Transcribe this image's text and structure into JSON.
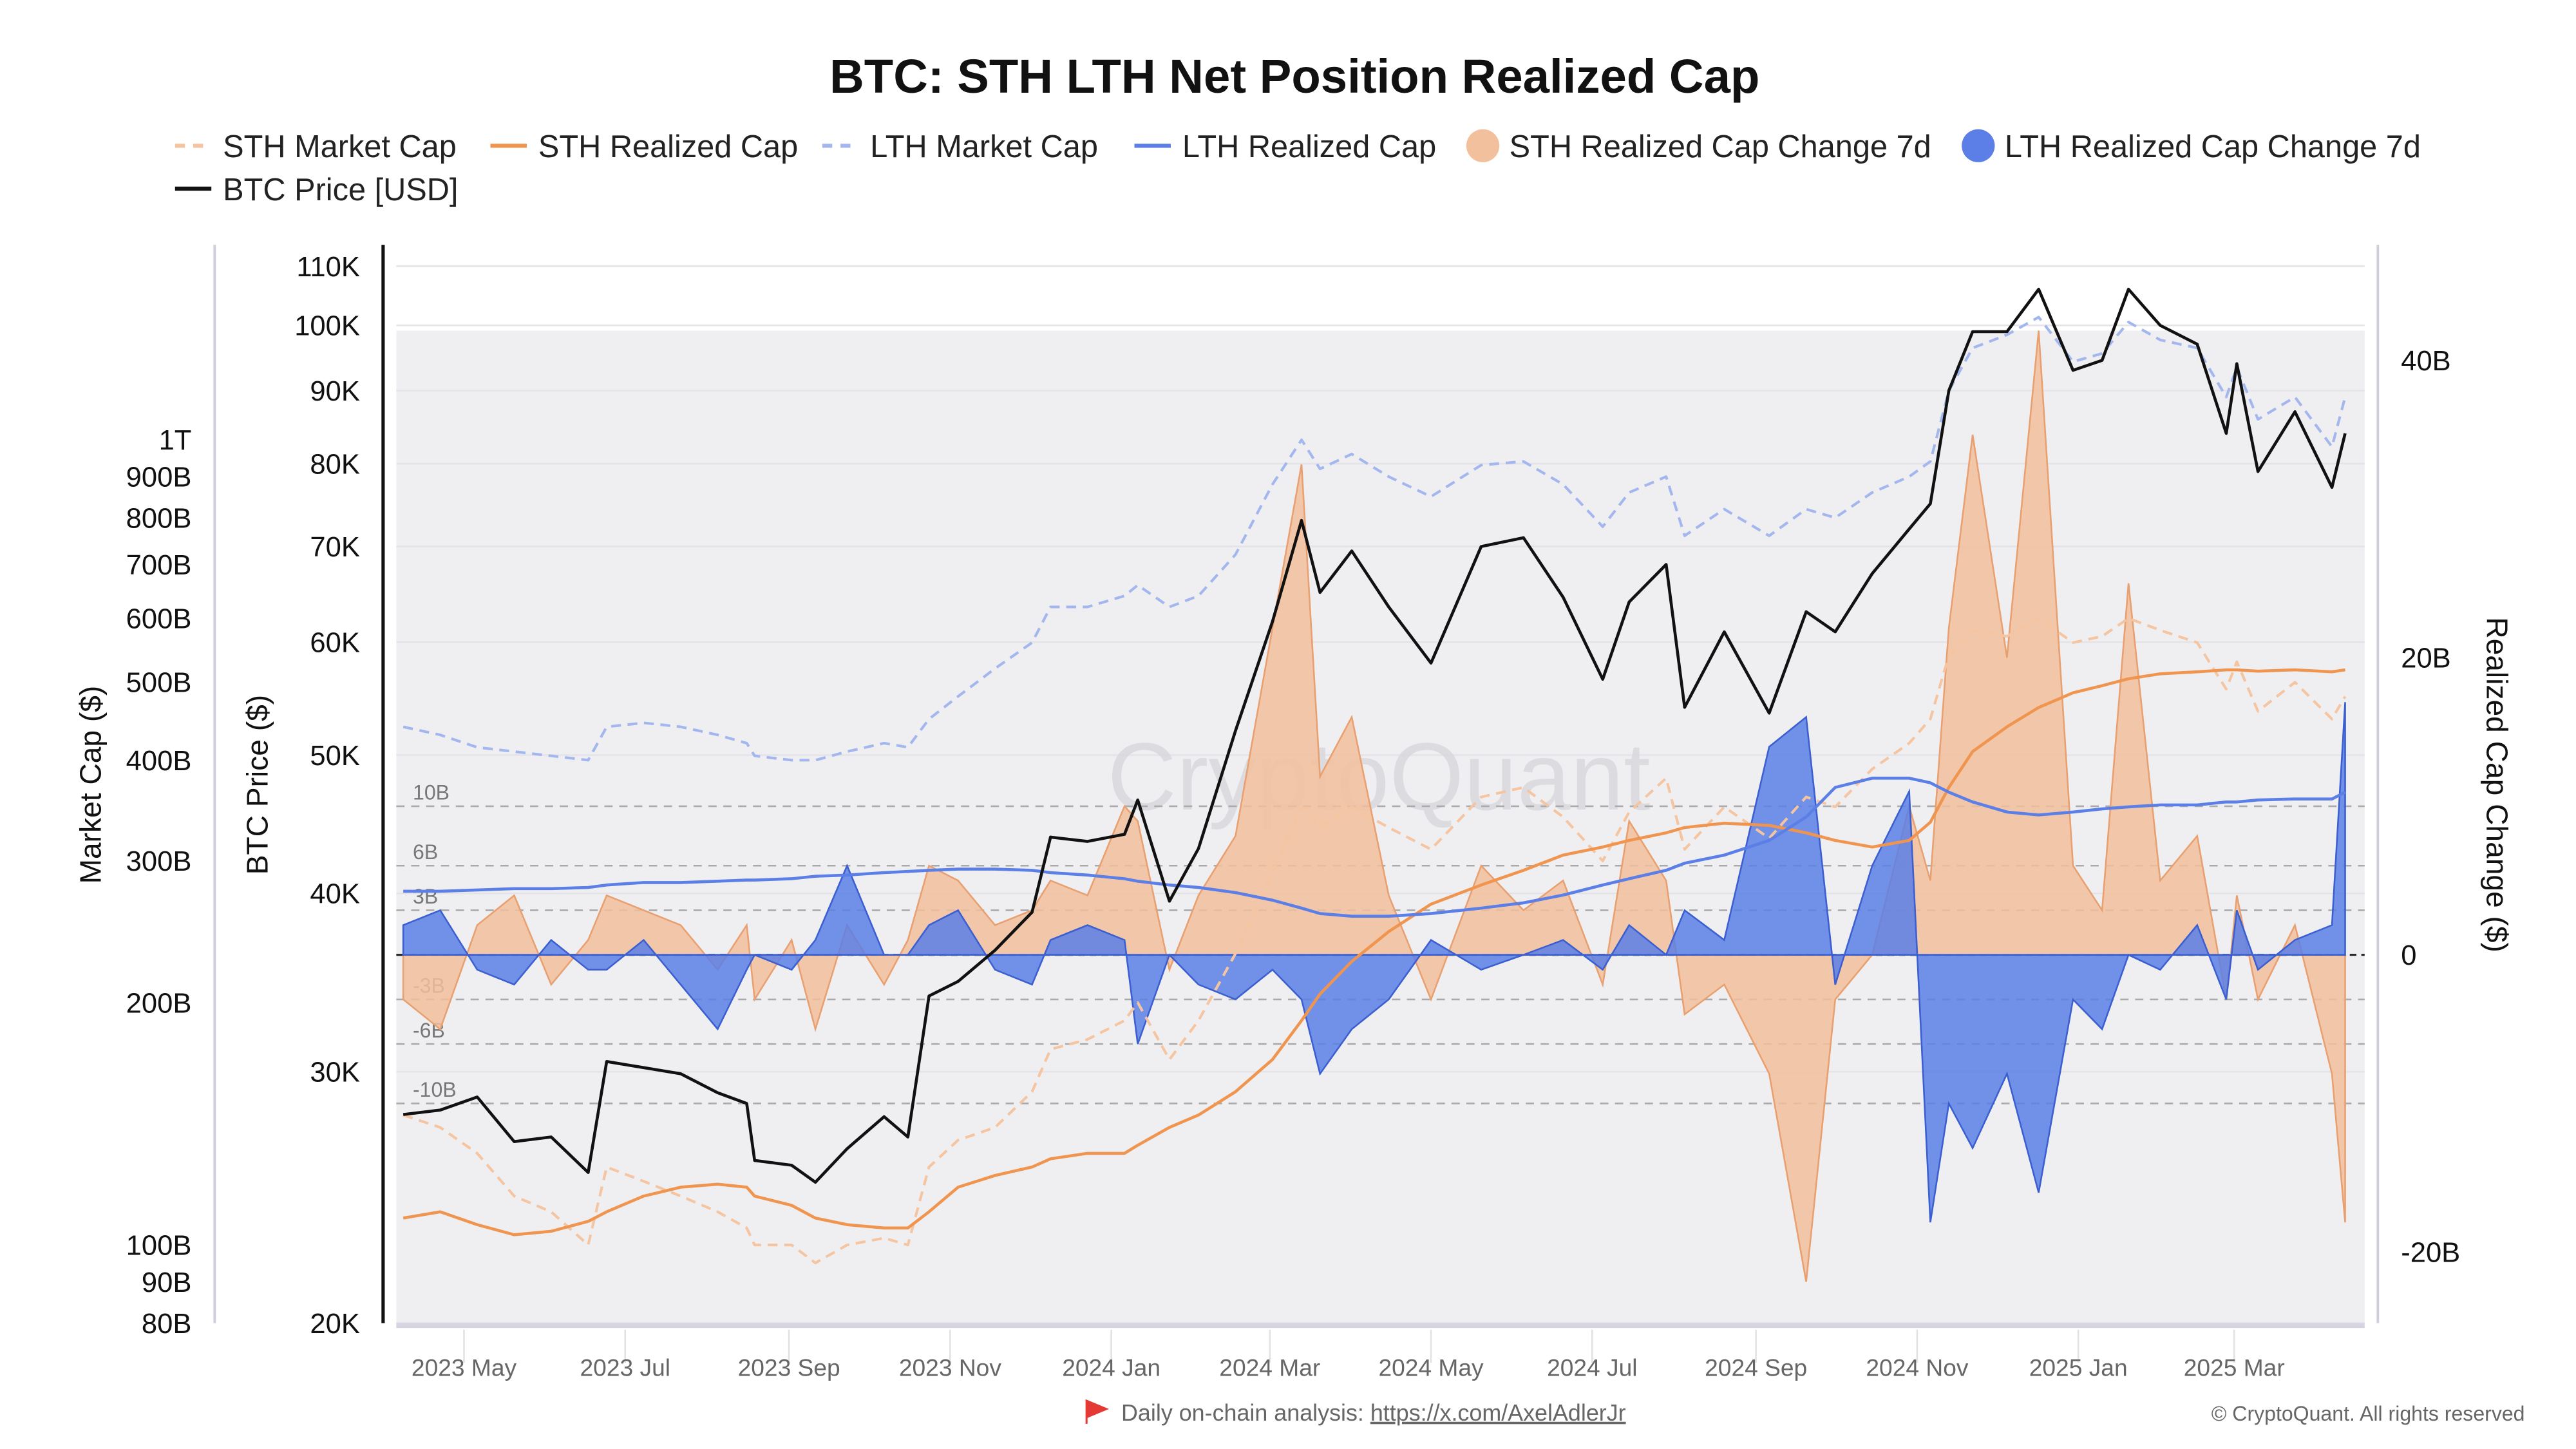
{
  "chart_data": {
    "type": "line",
    "title": "BTC: STH LTH Net Position Realized Cap",
    "legend": {
      "placement": "top-left",
      "items": [
        {
          "label": "STH Market Cap",
          "color": "#f5c4a0",
          "style": "dashed"
        },
        {
          "label": "STH Realized Cap",
          "color": "#f0954f",
          "style": "solid"
        },
        {
          "label": "LTH Market Cap",
          "color": "#a3b6ee",
          "style": "dashed"
        },
        {
          "label": "LTH Realized Cap",
          "color": "#5b7fe6",
          "style": "solid"
        },
        {
          "label": "STH Realized Cap Change 7d",
          "color": "#f2c09c",
          "style": "area"
        },
        {
          "label": "LTH Realized Cap Change 7d",
          "color": "#5b7fe6",
          "style": "area"
        },
        {
          "label": "BTC Price [USD]",
          "color": "#111111",
          "style": "solid"
        }
      ]
    },
    "axes": {
      "market_cap": {
        "label": "Market Cap ($)",
        "scale": "log",
        "range": [
          80,
          1000
        ],
        "unit": "B",
        "ticks": [
          "80B",
          "90B",
          "100B",
          "200B",
          "300B",
          "400B",
          "500B",
          "600B",
          "700B",
          "800B",
          "900B",
          "1T"
        ],
        "tick_values": [
          80,
          90,
          100,
          200,
          300,
          400,
          500,
          600,
          700,
          800,
          900,
          1000
        ]
      },
      "price": {
        "label": "BTC Price ($)",
        "scale": "log",
        "range": [
          20000,
          110000
        ],
        "ticks": [
          "20K",
          "30K",
          "40K",
          "50K",
          "60K",
          "70K",
          "80K",
          "90K",
          "100K",
          "110K"
        ],
        "tick_values": [
          20000,
          30000,
          40000,
          50000,
          60000,
          70000,
          80000,
          90000,
          100000,
          110000
        ]
      },
      "change": {
        "label": "Realized Cap Change ($)",
        "scale": "linear",
        "range": [
          -25,
          45
        ],
        "unit": "B",
        "ticks": [
          "-20B",
          "0",
          "20B",
          "40B"
        ],
        "tick_values": [
          -20,
          0,
          20,
          40
        ]
      },
      "x": {
        "type": "date",
        "ticks": [
          "2023 May",
          "2023 Jul",
          "2023 Sep",
          "2023 Nov",
          "2024 Jan",
          "2024 Mar",
          "2024 May",
          "2024 Jul",
          "2024 Sep",
          "2024 Nov",
          "2025 Jan",
          "2025 Mar"
        ],
        "tick_dates": [
          "2023-05-01",
          "2023-07-01",
          "2023-09-01",
          "2023-11-01",
          "2024-01-01",
          "2024-03-01",
          "2024-05-01",
          "2024-07-01",
          "2024-09-01",
          "2024-11-01",
          "2025-01-01",
          "2025-03-01"
        ]
      }
    },
    "reference_lines": [
      {
        "label": "10B",
        "value": 10
      },
      {
        "label": "6B",
        "value": 6
      },
      {
        "label": "3B",
        "value": 3
      },
      {
        "label": "-3B",
        "value": -3
      },
      {
        "label": "-6B",
        "value": -6
      },
      {
        "label": "-10B",
        "value": -10
      }
    ],
    "grid": true,
    "dates": [
      "2023-04-08",
      "2023-04-22",
      "2023-05-06",
      "2023-05-20",
      "2023-06-03",
      "2023-06-17",
      "2023-06-24",
      "2023-07-08",
      "2023-07-22",
      "2023-08-05",
      "2023-08-16",
      "2023-08-19",
      "2023-09-02",
      "2023-09-11",
      "2023-09-23",
      "2023-10-07",
      "2023-10-16",
      "2023-10-24",
      "2023-11-04",
      "2023-11-18",
      "2023-12-02",
      "2023-12-09",
      "2023-12-23",
      "2024-01-06",
      "2024-01-11",
      "2024-01-23",
      "2024-02-03",
      "2024-02-17",
      "2024-03-02",
      "2024-03-13",
      "2024-03-20",
      "2024-04-01",
      "2024-04-15",
      "2024-05-01",
      "2024-05-20",
      "2024-06-05",
      "2024-06-20",
      "2024-07-05",
      "2024-07-15",
      "2024-07-29",
      "2024-08-05",
      "2024-08-20",
      "2024-09-06",
      "2024-09-20",
      "2024-10-01",
      "2024-10-15",
      "2024-10-29",
      "2024-11-06",
      "2024-11-13",
      "2024-11-22",
      "2024-12-05",
      "2024-12-17",
      "2024-12-30",
      "2025-01-10",
      "2025-01-20",
      "2025-02-01",
      "2025-02-15",
      "2025-02-26",
      "2025-03-02",
      "2025-03-10",
      "2025-03-24",
      "2025-04-07",
      "2025-04-12"
    ],
    "series": [
      {
        "name": "BTC Price [USD]",
        "axis": "price",
        "values": [
          28000,
          28200,
          28800,
          26800,
          27000,
          25500,
          30500,
          30200,
          29900,
          29000,
          28500,
          26000,
          25800,
          25100,
          26500,
          27900,
          27000,
          33900,
          34700,
          36500,
          38800,
          43800,
          43500,
          44000,
          46500,
          39500,
          43000,
          52000,
          62000,
          73000,
          65000,
          69500,
          63500,
          58000,
          70000,
          71000,
          64500,
          56500,
          64000,
          68000,
          54000,
          61000,
          53500,
          63000,
          61000,
          67000,
          72000,
          75000,
          90000,
          99000,
          99000,
          106000,
          93000,
          94500,
          106000,
          100000,
          97000,
          84000,
          94000,
          79000,
          87000,
          77000,
          84000
        ]
      },
      {
        "name": "STH Market Cap",
        "axis": "market_cap",
        "values": [
          145,
          140,
          130,
          115,
          110,
          100,
          125,
          120,
          115,
          110,
          105,
          100,
          100,
          95,
          100,
          102,
          100,
          125,
          135,
          140,
          155,
          175,
          180,
          190,
          200,
          170,
          190,
          230,
          290,
          350,
          330,
          350,
          330,
          310,
          360,
          370,
          340,
          300,
          345,
          380,
          310,
          350,
          320,
          360,
          350,
          390,
          420,
          450,
          540,
          580,
          570,
          600,
          560,
          570,
          600,
          580,
          560,
          490,
          530,
          460,
          500,
          450,
          480
        ]
      },
      {
        "name": "STH Realized Cap",
        "axis": "market_cap",
        "values": [
          108,
          110,
          106,
          103,
          104,
          107,
          110,
          115,
          118,
          119,
          118,
          115,
          112,
          108,
          106,
          105,
          105,
          110,
          118,
          122,
          125,
          128,
          130,
          130,
          133,
          140,
          145,
          155,
          170,
          190,
          205,
          225,
          245,
          265,
          280,
          292,
          305,
          312,
          318,
          325,
          330,
          334,
          332,
          325,
          318,
          312,
          318,
          335,
          370,
          410,
          440,
          465,
          485,
          495,
          505,
          512,
          515,
          518,
          518,
          516,
          518,
          515,
          518
        ]
      },
      {
        "name": "LTH Market Cap",
        "axis": "market_cap",
        "values": [
          440,
          430,
          415,
          410,
          405,
          400,
          440,
          445,
          440,
          430,
          420,
          405,
          400,
          400,
          410,
          420,
          415,
          450,
          480,
          520,
          560,
          620,
          620,
          640,
          660,
          620,
          640,
          720,
          880,
          1000,
          920,
          960,
          900,
          850,
          930,
          940,
          880,
          780,
          860,
          900,
          760,
          820,
          760,
          820,
          800,
          860,
          900,
          940,
          1150,
          1300,
          1350,
          1420,
          1250,
          1280,
          1400,
          1330,
          1300,
          1130,
          1230,
          1060,
          1130,
          980,
          1130
        ]
      },
      {
        "name": "LTH Realized Cap",
        "axis": "market_cap",
        "values": [
          275,
          275,
          276,
          277,
          277,
          278,
          280,
          282,
          282,
          283,
          284,
          284,
          285,
          287,
          288,
          290,
          291,
          292,
          293,
          293,
          292,
          290,
          288,
          285,
          283,
          280,
          278,
          274,
          268,
          262,
          258,
          256,
          256,
          258,
          262,
          266,
          272,
          280,
          285,
          292,
          298,
          305,
          318,
          340,
          370,
          380,
          380,
          375,
          365,
          355,
          345,
          342,
          345,
          348,
          350,
          352,
          352,
          355,
          355,
          357,
          358,
          358,
          365
        ]
      },
      {
        "name": "STH Realized Cap Change 7d",
        "axis": "change",
        "values": [
          -3,
          -5,
          2,
          4,
          -2,
          1,
          4,
          3,
          2,
          -1,
          2,
          -3,
          1,
          -5,
          2,
          -2,
          1,
          6,
          5,
          2,
          3,
          5,
          4,
          10,
          9,
          -1,
          4,
          8,
          22,
          33,
          12,
          16,
          4,
          -3,
          6,
          3,
          5,
          -2,
          9,
          5,
          -4,
          -2,
          -8,
          -22,
          -3,
          0,
          10,
          5,
          22,
          35,
          20,
          42,
          6,
          3,
          25,
          5,
          8,
          -3,
          4,
          -3,
          2,
          -8,
          -18
        ]
      },
      {
        "name": "LTH Realized Cap Change 7d",
        "axis": "change",
        "values": [
          2,
          3,
          -1,
          -2,
          1,
          -1,
          -1,
          1,
          -2,
          -5,
          -1,
          0,
          -1,
          1,
          6,
          0,
          0,
          2,
          3,
          -1,
          -2,
          1,
          2,
          1,
          -6,
          0,
          -2,
          -3,
          -1,
          -3,
          -8,
          -5,
          -3,
          1,
          -1,
          0,
          1,
          -1,
          2,
          0,
          3,
          1,
          14,
          16,
          -2,
          6,
          11,
          -18,
          -10,
          -13,
          -8,
          -16,
          -3,
          -5,
          0,
          -1,
          2,
          -3,
          3,
          -1,
          1,
          2,
          17
        ]
      }
    ]
  },
  "watermark": "CryptoQuant",
  "footer": {
    "note": "Daily on-chain analysis: ",
    "link": "https://x.com/AxelAdlerJr",
    "copyright": "© CryptoQuant. All rights reserved"
  },
  "icons": {
    "flag": "flag-icon"
  }
}
